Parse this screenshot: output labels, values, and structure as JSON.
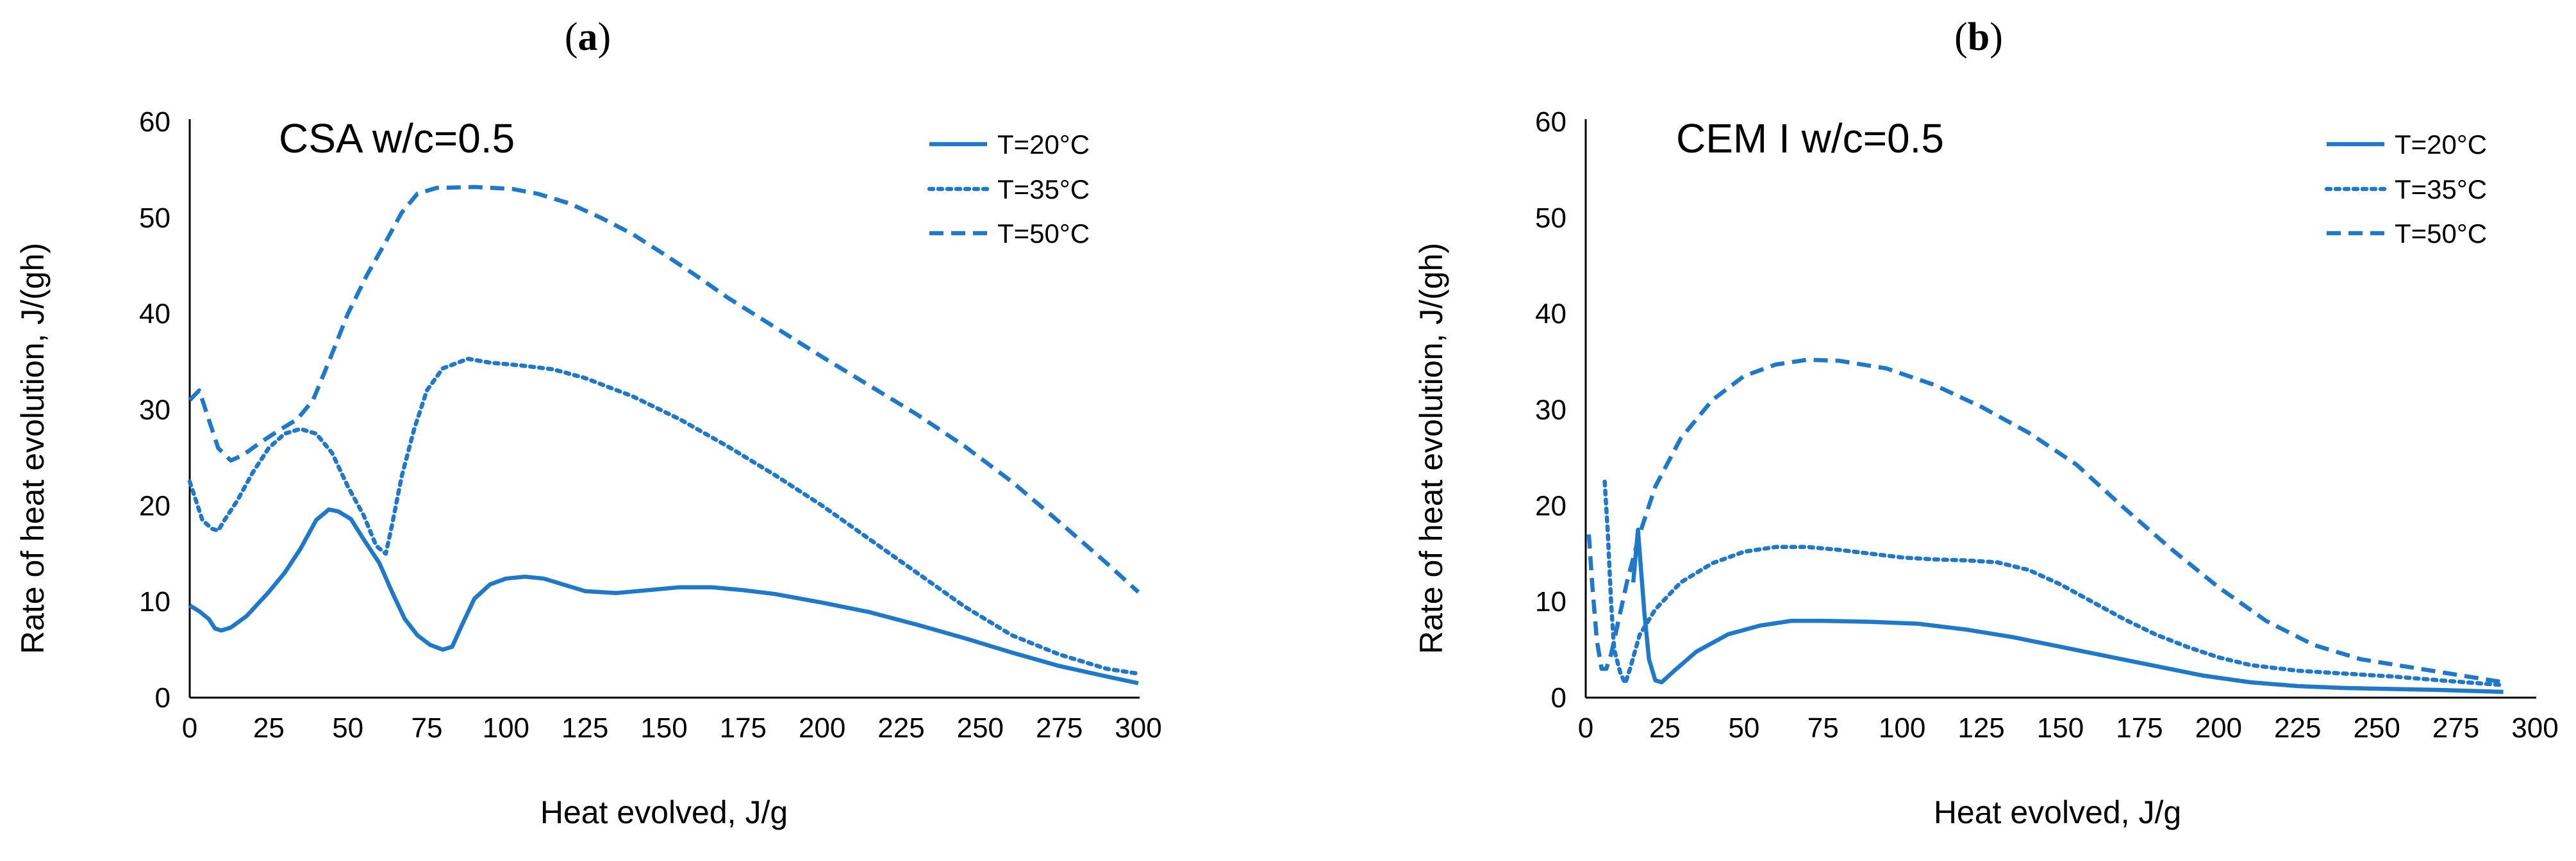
{
  "figure": {
    "accent_color": "#1f78c8"
  },
  "chart_data": [
    {
      "panel": "(a)",
      "panel_letter": "a",
      "type": "line",
      "annotation": "CSA w/c=0.5",
      "xlabel": "Heat evolved, J/g",
      "ylabel": "Rate of heat evolution, J/(gh)",
      "xlim": [
        0,
        300
      ],
      "ylim": [
        0,
        60
      ],
      "xticks": [
        0,
        25,
        50,
        75,
        100,
        125,
        150,
        175,
        200,
        225,
        250,
        275,
        300
      ],
      "yticks": [
        0,
        10,
        20,
        30,
        40,
        50,
        60
      ],
      "grid": false,
      "legend_position": "top-right",
      "series": [
        {
          "name": "T=20°C",
          "style": "solid",
          "points": [
            [
              0,
              9.6
            ],
            [
              3,
              9
            ],
            [
              6,
              8.2
            ],
            [
              8,
              7.2
            ],
            [
              10,
              7
            ],
            [
              13,
              7.3
            ],
            [
              18,
              8.5
            ],
            [
              25,
              11
            ],
            [
              30,
              13
            ],
            [
              35,
              15.5
            ],
            [
              40,
              18.5
            ],
            [
              44,
              19.6
            ],
            [
              47,
              19.4
            ],
            [
              51,
              18.6
            ],
            [
              55,
              16.5
            ],
            [
              60,
              14
            ],
            [
              64,
              11
            ],
            [
              68,
              8.2
            ],
            [
              72,
              6.5
            ],
            [
              76,
              5.5
            ],
            [
              80,
              5
            ],
            [
              83,
              5.3
            ],
            [
              86,
              7.5
            ],
            [
              90,
              10.3
            ],
            [
              95,
              11.8
            ],
            [
              100,
              12.4
            ],
            [
              106,
              12.6
            ],
            [
              112,
              12.4
            ],
            [
              118,
              11.8
            ],
            [
              125,
              11.1
            ],
            [
              135,
              10.9
            ],
            [
              145,
              11.2
            ],
            [
              155,
              11.5
            ],
            [
              165,
              11.5
            ],
            [
              175,
              11.2
            ],
            [
              185,
              10.8
            ],
            [
              200,
              9.9
            ],
            [
              215,
              8.9
            ],
            [
              230,
              7.6
            ],
            [
              245,
              6.2
            ],
            [
              260,
              4.7
            ],
            [
              275,
              3.3
            ],
            [
              290,
              2.2
            ],
            [
              300,
              1.5
            ]
          ]
        },
        {
          "name": "T=35°C",
          "style": "dotted",
          "points": [
            [
              0,
              22.5
            ],
            [
              2,
              20.5
            ],
            [
              4,
              18.5
            ],
            [
              7,
              17.6
            ],
            [
              9,
              17.4
            ],
            [
              11,
              18.5
            ],
            [
              15,
              20.5
            ],
            [
              20,
              23.5
            ],
            [
              25,
              26
            ],
            [
              30,
              27.5
            ],
            [
              35,
              28
            ],
            [
              40,
              27.5
            ],
            [
              45,
              25.5
            ],
            [
              50,
              22
            ],
            [
              55,
              19
            ],
            [
              59,
              15.8
            ],
            [
              62,
              15
            ],
            [
              64,
              18
            ],
            [
              67,
              23
            ],
            [
              71,
              28
            ],
            [
              75,
              32
            ],
            [
              80,
              34.3
            ],
            [
              88,
              35.3
            ],
            [
              95,
              34.9
            ],
            [
              105,
              34.6
            ],
            [
              115,
              34.2
            ],
            [
              125,
              33.3
            ],
            [
              140,
              31.4
            ],
            [
              155,
              29
            ],
            [
              170,
              26.2
            ],
            [
              185,
              23.2
            ],
            [
              200,
              20
            ],
            [
              215,
              16.5
            ],
            [
              230,
              13
            ],
            [
              245,
              9.5
            ],
            [
              260,
              6.5
            ],
            [
              275,
              4.5
            ],
            [
              290,
              3
            ],
            [
              300,
              2.5
            ]
          ]
        },
        {
          "name": "T=50°C",
          "style": "dashed",
          "points": [
            [
              0,
              31
            ],
            [
              3,
              32
            ],
            [
              6,
              29
            ],
            [
              9,
              26
            ],
            [
              13,
              24.7
            ],
            [
              17,
              25.3
            ],
            [
              22,
              26.5
            ],
            [
              28,
              27.8
            ],
            [
              34,
              29
            ],
            [
              39,
              31
            ],
            [
              44,
              35
            ],
            [
              50,
              40
            ],
            [
              56,
              44
            ],
            [
              62,
              47.5
            ],
            [
              67,
              50.5
            ],
            [
              72,
              52.5
            ],
            [
              78,
              53.1
            ],
            [
              90,
              53.2
            ],
            [
              102,
              53
            ],
            [
              110,
              52.5
            ],
            [
              120,
              51.5
            ],
            [
              130,
              50
            ],
            [
              140,
              48.3
            ],
            [
              150,
              46.2
            ],
            [
              160,
              44
            ],
            [
              170,
              41.7
            ],
            [
              185,
              38.6
            ],
            [
              200,
              35.5
            ],
            [
              215,
              32.5
            ],
            [
              230,
              29.5
            ],
            [
              245,
              26.2
            ],
            [
              260,
              22.5
            ],
            [
              275,
              18.3
            ],
            [
              290,
              14
            ],
            [
              300,
              11
            ]
          ]
        }
      ]
    },
    {
      "panel": "(b)",
      "panel_letter": "b",
      "type": "line",
      "annotation": "CEM I w/c=0.5",
      "xlabel": "Heat evolved, J/g",
      "ylabel": "Rate of heat evolution, J/(gh)",
      "xlim": [
        0,
        300
      ],
      "ylim": [
        0,
        60
      ],
      "xticks": [
        0,
        25,
        50,
        75,
        100,
        125,
        150,
        175,
        200,
        225,
        250,
        275,
        300
      ],
      "yticks": [
        0,
        10,
        20,
        30,
        40,
        50,
        60
      ],
      "grid": false,
      "legend_position": "top-right",
      "series": [
        {
          "name": "T=20°C",
          "style": "solid",
          "points": [
            [
              15,
              12
            ],
            [
              16.5,
              17.5
            ],
            [
              18.5,
              9
            ],
            [
              20,
              4
            ],
            [
              22,
              1.8
            ],
            [
              24,
              1.6
            ],
            [
              28,
              2.8
            ],
            [
              35,
              4.8
            ],
            [
              45,
              6.6
            ],
            [
              55,
              7.5
            ],
            [
              65,
              8
            ],
            [
              75,
              8
            ],
            [
              90,
              7.9
            ],
            [
              105,
              7.7
            ],
            [
              120,
              7.1
            ],
            [
              135,
              6.3
            ],
            [
              150,
              5.3
            ],
            [
              165,
              4.3
            ],
            [
              180,
              3.3
            ],
            [
              195,
              2.3
            ],
            [
              210,
              1.6
            ],
            [
              225,
              1.2
            ],
            [
              240,
              1
            ],
            [
              255,
              0.9
            ],
            [
              270,
              0.8
            ],
            [
              290,
              0.6
            ]
          ]
        },
        {
          "name": "T=35°C",
          "style": "dotted",
          "points": [
            [
              6,
              22.5
            ],
            [
              7,
              17
            ],
            [
              8,
              10
            ],
            [
              9,
              5
            ],
            [
              11,
              2.5
            ],
            [
              12.5,
              1.5
            ],
            [
              14,
              3
            ],
            [
              17,
              6.5
            ],
            [
              22,
              9.2
            ],
            [
              30,
              12
            ],
            [
              40,
              14
            ],
            [
              50,
              15.2
            ],
            [
              60,
              15.7
            ],
            [
              70,
              15.7
            ],
            [
              80,
              15.4
            ],
            [
              90,
              15
            ],
            [
              100,
              14.6
            ],
            [
              110,
              14.4
            ],
            [
              120,
              14.3
            ],
            [
              130,
              14.1
            ],
            [
              140,
              13.3
            ],
            [
              150,
              11.8
            ],
            [
              160,
              10
            ],
            [
              170,
              8.2
            ],
            [
              180,
              6.6
            ],
            [
              190,
              5.3
            ],
            [
              200,
              4.2
            ],
            [
              210,
              3.4
            ],
            [
              225,
              2.8
            ],
            [
              240,
              2.5
            ],
            [
              255,
              2.2
            ],
            [
              270,
              1.8
            ],
            [
              290,
              1.3
            ]
          ]
        },
        {
          "name": "T=50°C",
          "style": "dashed",
          "points": [
            [
              1,
              17
            ],
            [
              2,
              12
            ],
            [
              3.5,
              6
            ],
            [
              5,
              3
            ],
            [
              6.5,
              3
            ],
            [
              8,
              4.5
            ],
            [
              10,
              7.5
            ],
            [
              13,
              12
            ],
            [
              17,
              17
            ],
            [
              22,
              22
            ],
            [
              30,
              27
            ],
            [
              40,
              31
            ],
            [
              50,
              33.5
            ],
            [
              60,
              34.7
            ],
            [
              70,
              35.2
            ],
            [
              80,
              35.1
            ],
            [
              95,
              34.3
            ],
            [
              110,
              32.6
            ],
            [
              125,
              30.3
            ],
            [
              140,
              27.6
            ],
            [
              155,
              24.3
            ],
            [
              170,
              19.8
            ],
            [
              185,
              15.5
            ],
            [
              200,
              11.5
            ],
            [
              215,
              8
            ],
            [
              230,
              5.5
            ],
            [
              245,
              4
            ],
            [
              260,
              3.2
            ],
            [
              275,
              2.4
            ],
            [
              290,
              1.6
            ]
          ]
        }
      ]
    }
  ]
}
